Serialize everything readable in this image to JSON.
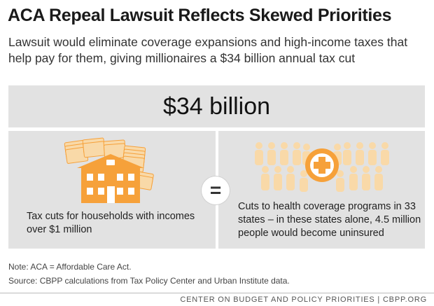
{
  "title": "ACA Repeal Lawsuit Reflects Skewed Priorities",
  "subtitle": "Lawsuit would eliminate coverage expansions and high-income taxes that help pay for them, giving millionaires a $34 billion annual tax cut",
  "amount": "$34 billion",
  "equals": "=",
  "left_caption": "Tax cuts for households with incomes over $1 million",
  "right_caption": "Cuts to health coverage programs in 33 states – in these states alone, 4.5 million people would become uninsured",
  "notes": {
    "note": "Note: ACA = Affordable Care Act.",
    "source": "Source: CBPP calculations from Tax Policy Center and Urban Institute data."
  },
  "footer": "CENTER ON BUDGET AND POLICY PRIORITIES | CBPP.ORG",
  "colors": {
    "accent_orange": "#F6A13A",
    "light_orange": "#F9D9A8",
    "panel_gray": "#E2E2E2"
  },
  "icons": [
    "money-stack-icon",
    "house-icon",
    "people-crowd-icon",
    "medical-cross-icon"
  ]
}
